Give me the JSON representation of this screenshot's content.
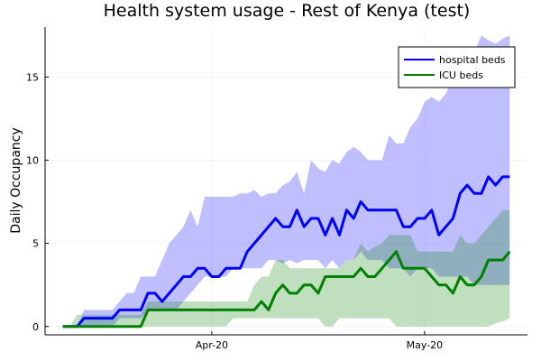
{
  "chart_data": {
    "type": "line",
    "title": "Health system usage - Rest of Kenya (test)",
    "ylabel": "Daily Occupancy",
    "xlabel": "",
    "x_start": "2020-03-11",
    "x_end": "2020-05-13",
    "ylim": [
      -0.5,
      18
    ],
    "x_ticks": [
      {
        "date": "2020-04-01",
        "label": "Apr-20"
      },
      {
        "date": "2020-05-01",
        "label": "May-20"
      }
    ],
    "y_ticks": [
      0,
      5,
      10,
      15
    ],
    "grid": true,
    "legend_position": "top-right",
    "series": [
      {
        "name": "hospital beds",
        "color": "#0000ff",
        "x": [
          "2020-03-11",
          "2020-03-12",
          "2020-03-13",
          "2020-03-14",
          "2020-03-15",
          "2020-03-16",
          "2020-03-17",
          "2020-03-18",
          "2020-03-19",
          "2020-03-20",
          "2020-03-21",
          "2020-03-22",
          "2020-03-23",
          "2020-03-24",
          "2020-03-25",
          "2020-03-26",
          "2020-03-27",
          "2020-03-28",
          "2020-03-29",
          "2020-03-30",
          "2020-03-31",
          "2020-04-01",
          "2020-04-02",
          "2020-04-03",
          "2020-04-04",
          "2020-04-05",
          "2020-04-06",
          "2020-04-07",
          "2020-04-08",
          "2020-04-09",
          "2020-04-10",
          "2020-04-11",
          "2020-04-12",
          "2020-04-13",
          "2020-04-14",
          "2020-04-15",
          "2020-04-16",
          "2020-04-17",
          "2020-04-18",
          "2020-04-19",
          "2020-04-20",
          "2020-04-21",
          "2020-04-22",
          "2020-04-23",
          "2020-04-24",
          "2020-04-25",
          "2020-04-26",
          "2020-04-27",
          "2020-04-28",
          "2020-04-29",
          "2020-04-30",
          "2020-05-01",
          "2020-05-02",
          "2020-05-03",
          "2020-05-04",
          "2020-05-05",
          "2020-05-06",
          "2020-05-07",
          "2020-05-08",
          "2020-05-09",
          "2020-05-10",
          "2020-05-11",
          "2020-05-12",
          "2020-05-13"
        ],
        "values": [
          0,
          0,
          0,
          0.5,
          0.5,
          0.5,
          0.5,
          0.5,
          1,
          1,
          1,
          1,
          2,
          2,
          1.5,
          2,
          2.5,
          3,
          3,
          3.5,
          3.5,
          3,
          3,
          3.5,
          3.5,
          3.5,
          4.5,
          5,
          5.5,
          6,
          6.5,
          6,
          6,
          7,
          6,
          6.5,
          6.5,
          5.5,
          6.5,
          5.5,
          7,
          6.5,
          7.5,
          7,
          7,
          7,
          7,
          7,
          6,
          6,
          6.5,
          6.5,
          7,
          5.5,
          6,
          6.5,
          8,
          8.5,
          8,
          8,
          9,
          8.5,
          9,
          9
        ],
        "lower": [
          0,
          0,
          0,
          0,
          0,
          0,
          0,
          0,
          0.5,
          0.5,
          0.5,
          0.5,
          1,
          1,
          1,
          1,
          1,
          1.5,
          2,
          2.5,
          3,
          3,
          3,
          3,
          3.5,
          3.5,
          3.5,
          3.5,
          3.5,
          4,
          4,
          3.8,
          4,
          3.8,
          4,
          4,
          4,
          3.5,
          4,
          3.5,
          4,
          4,
          4.5,
          4,
          4,
          4,
          3.5,
          3.5,
          3.5,
          3,
          3.5,
          3.5,
          3.5,
          3,
          3,
          3,
          3,
          3,
          2.5,
          2.5,
          2.5,
          2.5,
          2.5,
          2.5
        ],
        "upper": [
          0,
          0,
          0,
          1,
          1,
          1,
          1,
          1,
          1.5,
          2,
          2,
          3,
          3,
          3,
          4,
          5,
          5.5,
          6,
          7,
          6,
          7.8,
          7.8,
          7.8,
          7.8,
          7.8,
          8,
          8,
          8.2,
          7.8,
          8,
          8,
          8.5,
          8.7,
          9.3,
          8,
          10,
          9.5,
          9.3,
          10,
          9.8,
          10.5,
          10.8,
          10.5,
          10,
          10,
          10,
          11.5,
          11,
          11,
          12,
          12.5,
          13.5,
          13.8,
          13.5,
          14,
          15,
          15.5,
          16,
          16.5,
          17.5,
          17.2,
          17,
          17.3,
          17.5
        ]
      },
      {
        "name": "ICU beds",
        "color": "#008000",
        "x": [
          "2020-03-11",
          "2020-03-12",
          "2020-03-13",
          "2020-03-14",
          "2020-03-15",
          "2020-03-16",
          "2020-03-17",
          "2020-03-18",
          "2020-03-19",
          "2020-03-20",
          "2020-03-21",
          "2020-03-22",
          "2020-03-23",
          "2020-03-24",
          "2020-03-25",
          "2020-03-26",
          "2020-03-27",
          "2020-03-28",
          "2020-03-29",
          "2020-03-30",
          "2020-03-31",
          "2020-04-01",
          "2020-04-02",
          "2020-04-03",
          "2020-04-04",
          "2020-04-05",
          "2020-04-06",
          "2020-04-07",
          "2020-04-08",
          "2020-04-09",
          "2020-04-10",
          "2020-04-11",
          "2020-04-12",
          "2020-04-13",
          "2020-04-14",
          "2020-04-15",
          "2020-04-16",
          "2020-04-17",
          "2020-04-18",
          "2020-04-19",
          "2020-04-20",
          "2020-04-21",
          "2020-04-22",
          "2020-04-23",
          "2020-04-24",
          "2020-04-25",
          "2020-04-26",
          "2020-04-27",
          "2020-04-28",
          "2020-04-29",
          "2020-04-30",
          "2020-05-01",
          "2020-05-02",
          "2020-05-03",
          "2020-05-04",
          "2020-05-05",
          "2020-05-06",
          "2020-05-07",
          "2020-05-08",
          "2020-05-09",
          "2020-05-10",
          "2020-05-11",
          "2020-05-12",
          "2020-05-13"
        ],
        "values": [
          0,
          0,
          0,
          0,
          0,
          0,
          0,
          0,
          0,
          0,
          0,
          0,
          1,
          1,
          1,
          1,
          1,
          1,
          1,
          1,
          1,
          1,
          1,
          1,
          1,
          1,
          1,
          1,
          1.5,
          1,
          2,
          2.5,
          2,
          2,
          2.5,
          2.5,
          2,
          3,
          3,
          3,
          3,
          3,
          3.5,
          3,
          3,
          3.5,
          4,
          4.5,
          3.5,
          3.5,
          3.5,
          3.5,
          3,
          2.5,
          2.5,
          2,
          3,
          2.5,
          2.5,
          3,
          4,
          4,
          4,
          4.5
        ],
        "lower": [
          0,
          0,
          0,
          0,
          0,
          0,
          0,
          0,
          0,
          0,
          0,
          0,
          0,
          0,
          0,
          0,
          0,
          0,
          0,
          0,
          0,
          0,
          0,
          0,
          0.5,
          0.5,
          0.5,
          0.5,
          0.5,
          0.5,
          0.5,
          0.5,
          0.5,
          0.5,
          0.5,
          0.5,
          0.5,
          0,
          0,
          0.5,
          0.5,
          0.5,
          0.5,
          0.5,
          0.5,
          0.5,
          0.5,
          0,
          0,
          0,
          0,
          0,
          0,
          0,
          0,
          0,
          0,
          0,
          0,
          0,
          0,
          0.2,
          0.3,
          0.5
        ],
        "upper": [
          0,
          0,
          0.7,
          0.7,
          0.7,
          0.7,
          0.7,
          0.7,
          0.7,
          0.7,
          0.7,
          0.7,
          1.5,
          1.5,
          1.5,
          1.5,
          1.5,
          1.5,
          1.5,
          1.5,
          1.5,
          1.5,
          1.5,
          1.5,
          1.5,
          1.5,
          1.5,
          2.5,
          3,
          3,
          4,
          4,
          3.5,
          3.5,
          3.5,
          3.5,
          3.5,
          3.5,
          3.5,
          3.5,
          4,
          4,
          5,
          4.5,
          4.8,
          5,
          5.5,
          5.5,
          5.5,
          5.5,
          4.5,
          4.5,
          4.5,
          4.5,
          4.5,
          4.5,
          5.5,
          5,
          5,
          5.5,
          6,
          6.5,
          7,
          7
        ]
      }
    ]
  }
}
